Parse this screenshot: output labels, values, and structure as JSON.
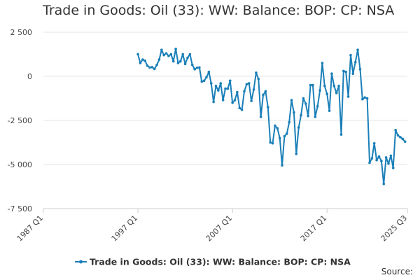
{
  "page": {
    "title": "Trade in Goods: Oil (33): WW: Balance: BOP: CP: NSA",
    "source_label": "Source:"
  },
  "colors": {
    "series": "#1a7fb8",
    "grid": "#e6e6e6",
    "axis": "#cccccc"
  },
  "chart_data": {
    "type": "line",
    "title": "Trade in Goods: Oil (33): WW: Balance: BOP: CP: NSA",
    "xlabel": "",
    "ylabel": "",
    "x_range": [
      "1987 Q1",
      "2025 Q3"
    ],
    "ylim": [
      -7500,
      2500
    ],
    "y_ticks": [
      2500,
      0,
      -2500,
      -5000,
      -7500
    ],
    "y_tick_labels": [
      "2 500",
      "0",
      "-2 500",
      "-5 000",
      "-7 500"
    ],
    "x_tick_labels": [
      "1987 Q1",
      "1997 Q1",
      "2007 Q1",
      "2017 Q1",
      "2025 Q3"
    ],
    "grid": "horizontal",
    "legend_position": "bottom",
    "series": [
      {
        "name": "Trade in Goods: Oil (33): WW: Balance: BOP: CP: NSA",
        "points": [
          [
            "1997 Q1",
            1250
          ],
          [
            "1997 Q2",
            750
          ],
          [
            "1997 Q3",
            950
          ],
          [
            "1997 Q4",
            880
          ],
          [
            "1998 Q1",
            600
          ],
          [
            "1998 Q2",
            500
          ],
          [
            "1998 Q3",
            520
          ],
          [
            "1998 Q4",
            420
          ],
          [
            "1999 Q1",
            650
          ],
          [
            "1999 Q2",
            950
          ],
          [
            "1999 Q3",
            1500
          ],
          [
            "1999 Q4",
            1200
          ],
          [
            "2000 Q1",
            1300
          ],
          [
            "2000 Q2",
            1150
          ],
          [
            "2000 Q3",
            1250
          ],
          [
            "2000 Q4",
            850
          ],
          [
            "2001 Q1",
            1550
          ],
          [
            "2001 Q2",
            750
          ],
          [
            "2001 Q3",
            850
          ],
          [
            "2001 Q4",
            1250
          ],
          [
            "2002 Q1",
            700
          ],
          [
            "2002 Q2",
            1050
          ],
          [
            "2002 Q3",
            1250
          ],
          [
            "2002 Q4",
            650
          ],
          [
            "2003 Q1",
            400
          ],
          [
            "2003 Q2",
            480
          ],
          [
            "2003 Q3",
            500
          ],
          [
            "2003 Q4",
            -300
          ],
          [
            "2004 Q1",
            -250
          ],
          [
            "2004 Q2",
            -50
          ],
          [
            "2004 Q3",
            250
          ],
          [
            "2004 Q4",
            -400
          ],
          [
            "2005 Q1",
            -1450
          ],
          [
            "2005 Q2",
            -550
          ],
          [
            "2005 Q3",
            -800
          ],
          [
            "2005 Q4",
            -400
          ],
          [
            "2006 Q1",
            -1350
          ],
          [
            "2006 Q2",
            -700
          ],
          [
            "2006 Q3",
            -700
          ],
          [
            "2006 Q4",
            -250
          ],
          [
            "2007 Q1",
            -1500
          ],
          [
            "2007 Q2",
            -1350
          ],
          [
            "2007 Q3",
            -900
          ],
          [
            "2007 Q4",
            -1800
          ],
          [
            "2008 Q1",
            -1900
          ],
          [
            "2008 Q2",
            -850
          ],
          [
            "2008 Q3",
            -450
          ],
          [
            "2008 Q4",
            -400
          ],
          [
            "2009 Q1",
            -1400
          ],
          [
            "2009 Q2",
            -750
          ],
          [
            "2009 Q3",
            200
          ],
          [
            "2009 Q4",
            -150
          ],
          [
            "2010 Q1",
            -2300
          ],
          [
            "2010 Q2",
            -1050
          ],
          [
            "2010 Q3",
            -850
          ],
          [
            "2010 Q4",
            -1750
          ],
          [
            "2011 Q1",
            -3750
          ],
          [
            "2011 Q2",
            -3800
          ],
          [
            "2011 Q3",
            -2800
          ],
          [
            "2011 Q4",
            -2950
          ],
          [
            "2012 Q1",
            -3500
          ],
          [
            "2012 Q2",
            -5050
          ],
          [
            "2012 Q3",
            -3400
          ],
          [
            "2012 Q4",
            -3250
          ],
          [
            "2013 Q1",
            -2600
          ],
          [
            "2013 Q2",
            -1350
          ],
          [
            "2013 Q3",
            -2050
          ],
          [
            "2013 Q4",
            -4400
          ],
          [
            "2014 Q1",
            -2900
          ],
          [
            "2014 Q2",
            -2200
          ],
          [
            "2014 Q3",
            -1250
          ],
          [
            "2014 Q4",
            -1550
          ],
          [
            "2015 Q1",
            -2250
          ],
          [
            "2015 Q2",
            -500
          ],
          [
            "2015 Q3",
            -500
          ],
          [
            "2015 Q4",
            -2300
          ],
          [
            "2016 Q1",
            -1700
          ],
          [
            "2016 Q2",
            -800
          ],
          [
            "2016 Q3",
            750
          ],
          [
            "2016 Q4",
            -550
          ],
          [
            "2017 Q1",
            -1000
          ],
          [
            "2017 Q2",
            -1950
          ],
          [
            "2017 Q3",
            150
          ],
          [
            "2017 Q4",
            -550
          ],
          [
            "2018 Q1",
            -950
          ],
          [
            "2018 Q2",
            -550
          ],
          [
            "2018 Q3",
            -3300
          ],
          [
            "2018 Q4",
            300
          ],
          [
            "2019 Q1",
            250
          ],
          [
            "2019 Q2",
            -1150
          ],
          [
            "2019 Q3",
            1200
          ],
          [
            "2019 Q4",
            150
          ],
          [
            "2020 Q1",
            800
          ],
          [
            "2020 Q2",
            1500
          ],
          [
            "2020 Q3",
            400
          ],
          [
            "2020 Q4",
            -1300
          ],
          [
            "2021 Q1",
            -1200
          ],
          [
            "2021 Q2",
            -1250
          ],
          [
            "2021 Q3",
            -4900
          ],
          [
            "2021 Q4",
            -4650
          ],
          [
            "2022 Q1",
            -3800
          ],
          [
            "2022 Q2",
            -4750
          ],
          [
            "2022 Q3",
            -4550
          ],
          [
            "2022 Q4",
            -4800
          ],
          [
            "2023 Q1",
            -6100
          ],
          [
            "2023 Q2",
            -4600
          ],
          [
            "2023 Q3",
            -4950
          ],
          [
            "2023 Q4",
            -4500
          ],
          [
            "2024 Q1",
            -5200
          ],
          [
            "2024 Q2",
            -3050
          ],
          [
            "2024 Q3",
            -3350
          ],
          [
            "2024 Q4",
            -3450
          ],
          [
            "2025 Q1",
            -3550
          ],
          [
            "2025 Q2",
            -3700
          ]
        ]
      }
    ]
  }
}
